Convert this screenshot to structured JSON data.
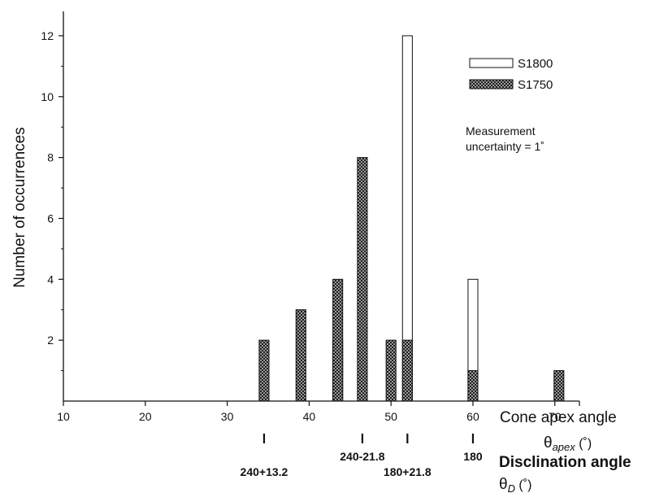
{
  "chart_data": {
    "type": "bar",
    "title": "",
    "xlabel": "Cone apex angle",
    "xlabel_symbol": "θ",
    "xlabel_subscript": "apex",
    "xlabel_unit": " (˚)",
    "ylabel": "Number of occurrences",
    "xlim": [
      10,
      73
    ],
    "ylim": [
      0,
      12.8
    ],
    "x_ticks": [
      10,
      20,
      30,
      40,
      50,
      60,
      70
    ],
    "y_ticks": [
      2,
      4,
      6,
      8,
      10,
      12
    ],
    "x": [
      34.5,
      39,
      43.5,
      46.5,
      50,
      52,
      60,
      70.5
    ],
    "bar_width_units": 1.2,
    "series": [
      {
        "name": "S1800",
        "fill": "#ffffff",
        "values": [
          0,
          0,
          2,
          0,
          0,
          12,
          4,
          0
        ]
      },
      {
        "name": "S1750",
        "fill": "#555555",
        "values": [
          2,
          3,
          4,
          8,
          2,
          2,
          1,
          1
        ]
      }
    ],
    "legend_position": "top-right",
    "annotation_line1": "Measurement",
    "annotation_line2": "uncertainty = 1˚",
    "secondary_axis": {
      "title": "Disclination angle",
      "symbol": "θ",
      "subscript": "D",
      "unit": " (˚)",
      "marks": [
        {
          "x": 34.5,
          "label": "240+13.2"
        },
        {
          "x": 46.5,
          "label": "240-21.8"
        },
        {
          "x": 52,
          "label": "180+21.8"
        },
        {
          "x": 60,
          "label": "180"
        }
      ]
    }
  }
}
